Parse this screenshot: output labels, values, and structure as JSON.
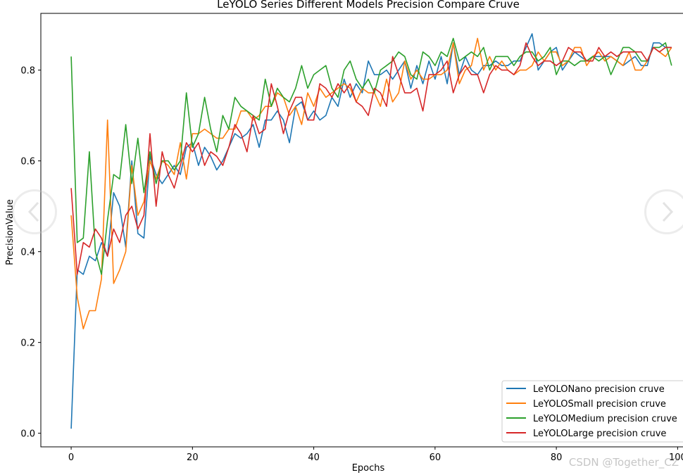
{
  "chart_data": {
    "type": "line",
    "title": "LeYOLO Series Different Models Precision Compare Cruve",
    "xlabel": "Epochs",
    "ylabel": "PrecisionValue",
    "xlim": [
      -5,
      101
    ],
    "ylim": [
      -0.03,
      0.925
    ],
    "xticks": [
      0,
      20,
      40,
      60,
      80,
      100
    ],
    "yticks": [
      0.0,
      0.2,
      0.4,
      0.6,
      0.8
    ],
    "grid": false,
    "legend_position": "bottom-right",
    "series": [
      {
        "name": "LeYOLONano precision cruve",
        "color": "#1f77b4",
        "values": [
          0.01,
          0.36,
          0.35,
          0.39,
          0.38,
          0.42,
          0.39,
          0.53,
          0.5,
          0.41,
          0.6,
          0.44,
          0.43,
          0.61,
          0.57,
          0.55,
          0.57,
          0.59,
          0.57,
          0.63,
          0.64,
          0.59,
          0.63,
          0.61,
          0.58,
          0.6,
          0.63,
          0.66,
          0.65,
          0.66,
          0.68,
          0.63,
          0.69,
          0.69,
          0.71,
          0.69,
          0.64,
          0.72,
          0.73,
          0.69,
          0.71,
          0.69,
          0.7,
          0.74,
          0.72,
          0.78,
          0.74,
          0.77,
          0.75,
          0.82,
          0.79,
          0.79,
          0.8,
          0.78,
          0.8,
          0.82,
          0.76,
          0.81,
          0.77,
          0.82,
          0.78,
          0.83,
          0.77,
          0.86,
          0.79,
          0.83,
          0.8,
          0.79,
          0.81,
          0.81,
          0.82,
          0.81,
          0.81,
          0.82,
          0.82,
          0.85,
          0.88,
          0.8,
          0.82,
          0.84,
          0.85,
          0.8,
          0.82,
          0.84,
          0.83,
          0.82,
          0.83,
          0.83,
          0.83,
          0.83,
          0.82,
          0.81,
          0.82,
          0.83,
          0.81,
          0.81,
          0.86,
          0.86,
          0.85,
          0.85
        ]
      },
      {
        "name": "LeYOLOSmall precision cruve",
        "color": "#ff7f0e",
        "values": [
          0.48,
          0.3,
          0.23,
          0.27,
          0.27,
          0.34,
          0.69,
          0.33,
          0.36,
          0.4,
          0.59,
          0.48,
          0.51,
          0.6,
          0.56,
          0.6,
          0.59,
          0.57,
          0.64,
          0.56,
          0.66,
          0.66,
          0.67,
          0.66,
          0.65,
          0.65,
          0.67,
          0.67,
          0.71,
          0.71,
          0.69,
          0.7,
          0.72,
          0.72,
          0.75,
          0.74,
          0.7,
          0.72,
          0.68,
          0.75,
          0.72,
          0.76,
          0.74,
          0.75,
          0.76,
          0.77,
          0.76,
          0.73,
          0.76,
          0.75,
          0.75,
          0.72,
          0.78,
          0.73,
          0.75,
          0.82,
          0.78,
          0.8,
          0.78,
          0.78,
          0.79,
          0.79,
          0.8,
          0.86,
          0.77,
          0.8,
          0.81,
          0.87,
          0.8,
          0.83,
          0.8,
          0.82,
          0.8,
          0.79,
          0.8,
          0.8,
          0.81,
          0.84,
          0.82,
          0.84,
          0.84,
          0.81,
          0.82,
          0.85,
          0.85,
          0.81,
          0.83,
          0.84,
          0.82,
          0.83,
          0.82,
          0.81,
          0.84,
          0.8,
          0.8,
          0.82,
          0.85,
          0.84,
          0.83,
          0.85
        ]
      },
      {
        "name": "LeYOLOMedium precision cruve",
        "color": "#2ca02c",
        "values": [
          0.83,
          0.42,
          0.43,
          0.62,
          0.4,
          0.35,
          0.47,
          0.57,
          0.56,
          0.68,
          0.55,
          0.65,
          0.53,
          0.62,
          0.55,
          0.6,
          0.6,
          0.58,
          0.6,
          0.75,
          0.63,
          0.66,
          0.74,
          0.67,
          0.62,
          0.7,
          0.67,
          0.74,
          0.72,
          0.71,
          0.7,
          0.69,
          0.78,
          0.72,
          0.76,
          0.74,
          0.73,
          0.76,
          0.81,
          0.76,
          0.79,
          0.8,
          0.81,
          0.76,
          0.74,
          0.8,
          0.82,
          0.78,
          0.76,
          0.78,
          0.75,
          0.8,
          0.81,
          0.82,
          0.84,
          0.83,
          0.79,
          0.78,
          0.84,
          0.83,
          0.81,
          0.84,
          0.83,
          0.87,
          0.82,
          0.83,
          0.84,
          0.83,
          0.85,
          0.8,
          0.83,
          0.83,
          0.83,
          0.81,
          0.83,
          0.84,
          0.84,
          0.82,
          0.83,
          0.85,
          0.79,
          0.82,
          0.82,
          0.81,
          0.82,
          0.82,
          0.83,
          0.82,
          0.83,
          0.79,
          0.82,
          0.85,
          0.85,
          0.84,
          0.82,
          0.82,
          0.85,
          0.85,
          0.86,
          0.81
        ]
      },
      {
        "name": "LeYOLOLarge precision cruve",
        "color": "#d62728",
        "values": [
          0.54,
          0.35,
          0.42,
          0.41,
          0.45,
          0.43,
          0.39,
          0.45,
          0.42,
          0.48,
          0.5,
          0.45,
          0.48,
          0.66,
          0.5,
          0.62,
          0.57,
          0.54,
          0.59,
          0.64,
          0.62,
          0.64,
          0.59,
          0.62,
          0.61,
          0.59,
          0.63,
          0.68,
          0.66,
          0.62,
          0.7,
          0.66,
          0.67,
          0.77,
          0.72,
          0.66,
          0.71,
          0.74,
          0.74,
          0.69,
          0.69,
          0.77,
          0.76,
          0.74,
          0.77,
          0.75,
          0.77,
          0.73,
          0.72,
          0.7,
          0.76,
          0.75,
          0.72,
          0.83,
          0.79,
          0.75,
          0.75,
          0.76,
          0.71,
          0.79,
          0.79,
          0.8,
          0.82,
          0.75,
          0.79,
          0.81,
          0.79,
          0.79,
          0.75,
          0.79,
          0.81,
          0.8,
          0.8,
          0.79,
          0.81,
          0.86,
          0.83,
          0.81,
          0.82,
          0.82,
          0.81,
          0.82,
          0.85,
          0.84,
          0.84,
          0.82,
          0.82,
          0.85,
          0.83,
          0.84,
          0.83,
          0.84,
          0.84,
          0.84,
          0.84,
          0.82,
          0.85,
          0.84,
          0.85,
          0.85
        ]
      }
    ]
  },
  "watermark_text": "CSDN @Together_CZ",
  "icons": {
    "prev": "chevron-left-icon",
    "next": "chevron-right-icon"
  }
}
